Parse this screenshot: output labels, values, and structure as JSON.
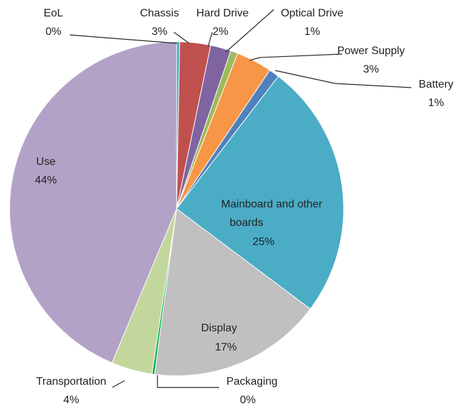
{
  "chart_data": {
    "type": "pie",
    "title": "",
    "slices": [
      {
        "name": "EoL",
        "value": 0.3,
        "label": "0%",
        "color": "#4bacc6"
      },
      {
        "name": "Chassis",
        "value": 3,
        "label": "3%",
        "color": "#c0504d"
      },
      {
        "name": "Hard Drive",
        "value": 2,
        "label": "2%",
        "color": "#8064a2"
      },
      {
        "name": "Optical Drive",
        "value": 0.7,
        "label": "1%",
        "color": "#9bbb59"
      },
      {
        "name": "Power Supply",
        "value": 3.5,
        "label": "3%",
        "color": "#f79646"
      },
      {
        "name": "Battery",
        "value": 1,
        "label": "1%",
        "color": "#4f81bd"
      },
      {
        "name": "Mainboard and other boards",
        "value": 25,
        "label": "25%",
        "color": "#4bacc6"
      },
      {
        "name": "Display",
        "value": 17,
        "label": "17%",
        "color": "#c0c0c0"
      },
      {
        "name": "Packaging",
        "value": 0.25,
        "label": "0%",
        "color": "#00b050"
      },
      {
        "name": "Transportation",
        "value": 4,
        "label": "4%",
        "color": "#c3d69b"
      },
      {
        "name": "Use",
        "value": 44,
        "label": "44%",
        "color": "#b3a2c7"
      }
    ],
    "legend": "none"
  }
}
